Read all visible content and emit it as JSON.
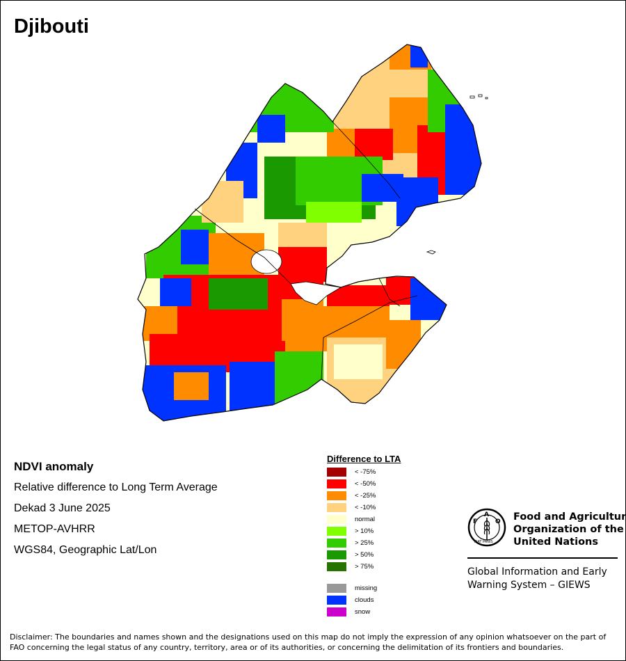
{
  "map": {
    "title": "Djibouti"
  },
  "info": {
    "line1": "NDVI anomaly",
    "line2": "Relative difference to Long Term Average",
    "line3": "Dekad 3 June 2025",
    "line4": "METOP-AVHRR",
    "line5": "WGS84, Geographic Lat/Lon"
  },
  "legend": {
    "title": "Difference to LTA",
    "items": [
      {
        "label": "< -75%",
        "color": "#a50000"
      },
      {
        "label": "< -50%",
        "color": "#ff0000"
      },
      {
        "label": "< -25%",
        "color": "#ff8c00"
      },
      {
        "label": "< -10%",
        "color": "#ffd27f"
      },
      {
        "label": "normal",
        "color": "#ffffcc"
      },
      {
        "label": "> 10%",
        "color": "#7fff00"
      },
      {
        "label": "> 25%",
        "color": "#33cc00"
      },
      {
        "label": "> 50%",
        "color": "#1a9900"
      },
      {
        "label": "> 75%",
        "color": "#267300"
      }
    ],
    "other_items": [
      {
        "label": "missing",
        "color": "#999999"
      },
      {
        "label": "clouds",
        "color": "#0033ff"
      },
      {
        "label": "snow",
        "color": "#cc00cc"
      }
    ]
  },
  "org": {
    "name_line1": "Food and Agriculture",
    "name_line2": "Organization of the",
    "name_line3": "United Nations",
    "emblem_text": "FAO",
    "emblem_motto": "FIAT PANIS",
    "giews_line1": "Global Information and Early",
    "giews_line2": "Warning System – GIEWS"
  },
  "disclaimer": "Disclaimer: The boundaries and names shown and the designations used on this map do not imply the expression of any opinion whatsoever on the part of FAO concerning the legal status of any country, territory, area or of its authorities, or concerning the delimitation of its frontiers and boundaries."
}
